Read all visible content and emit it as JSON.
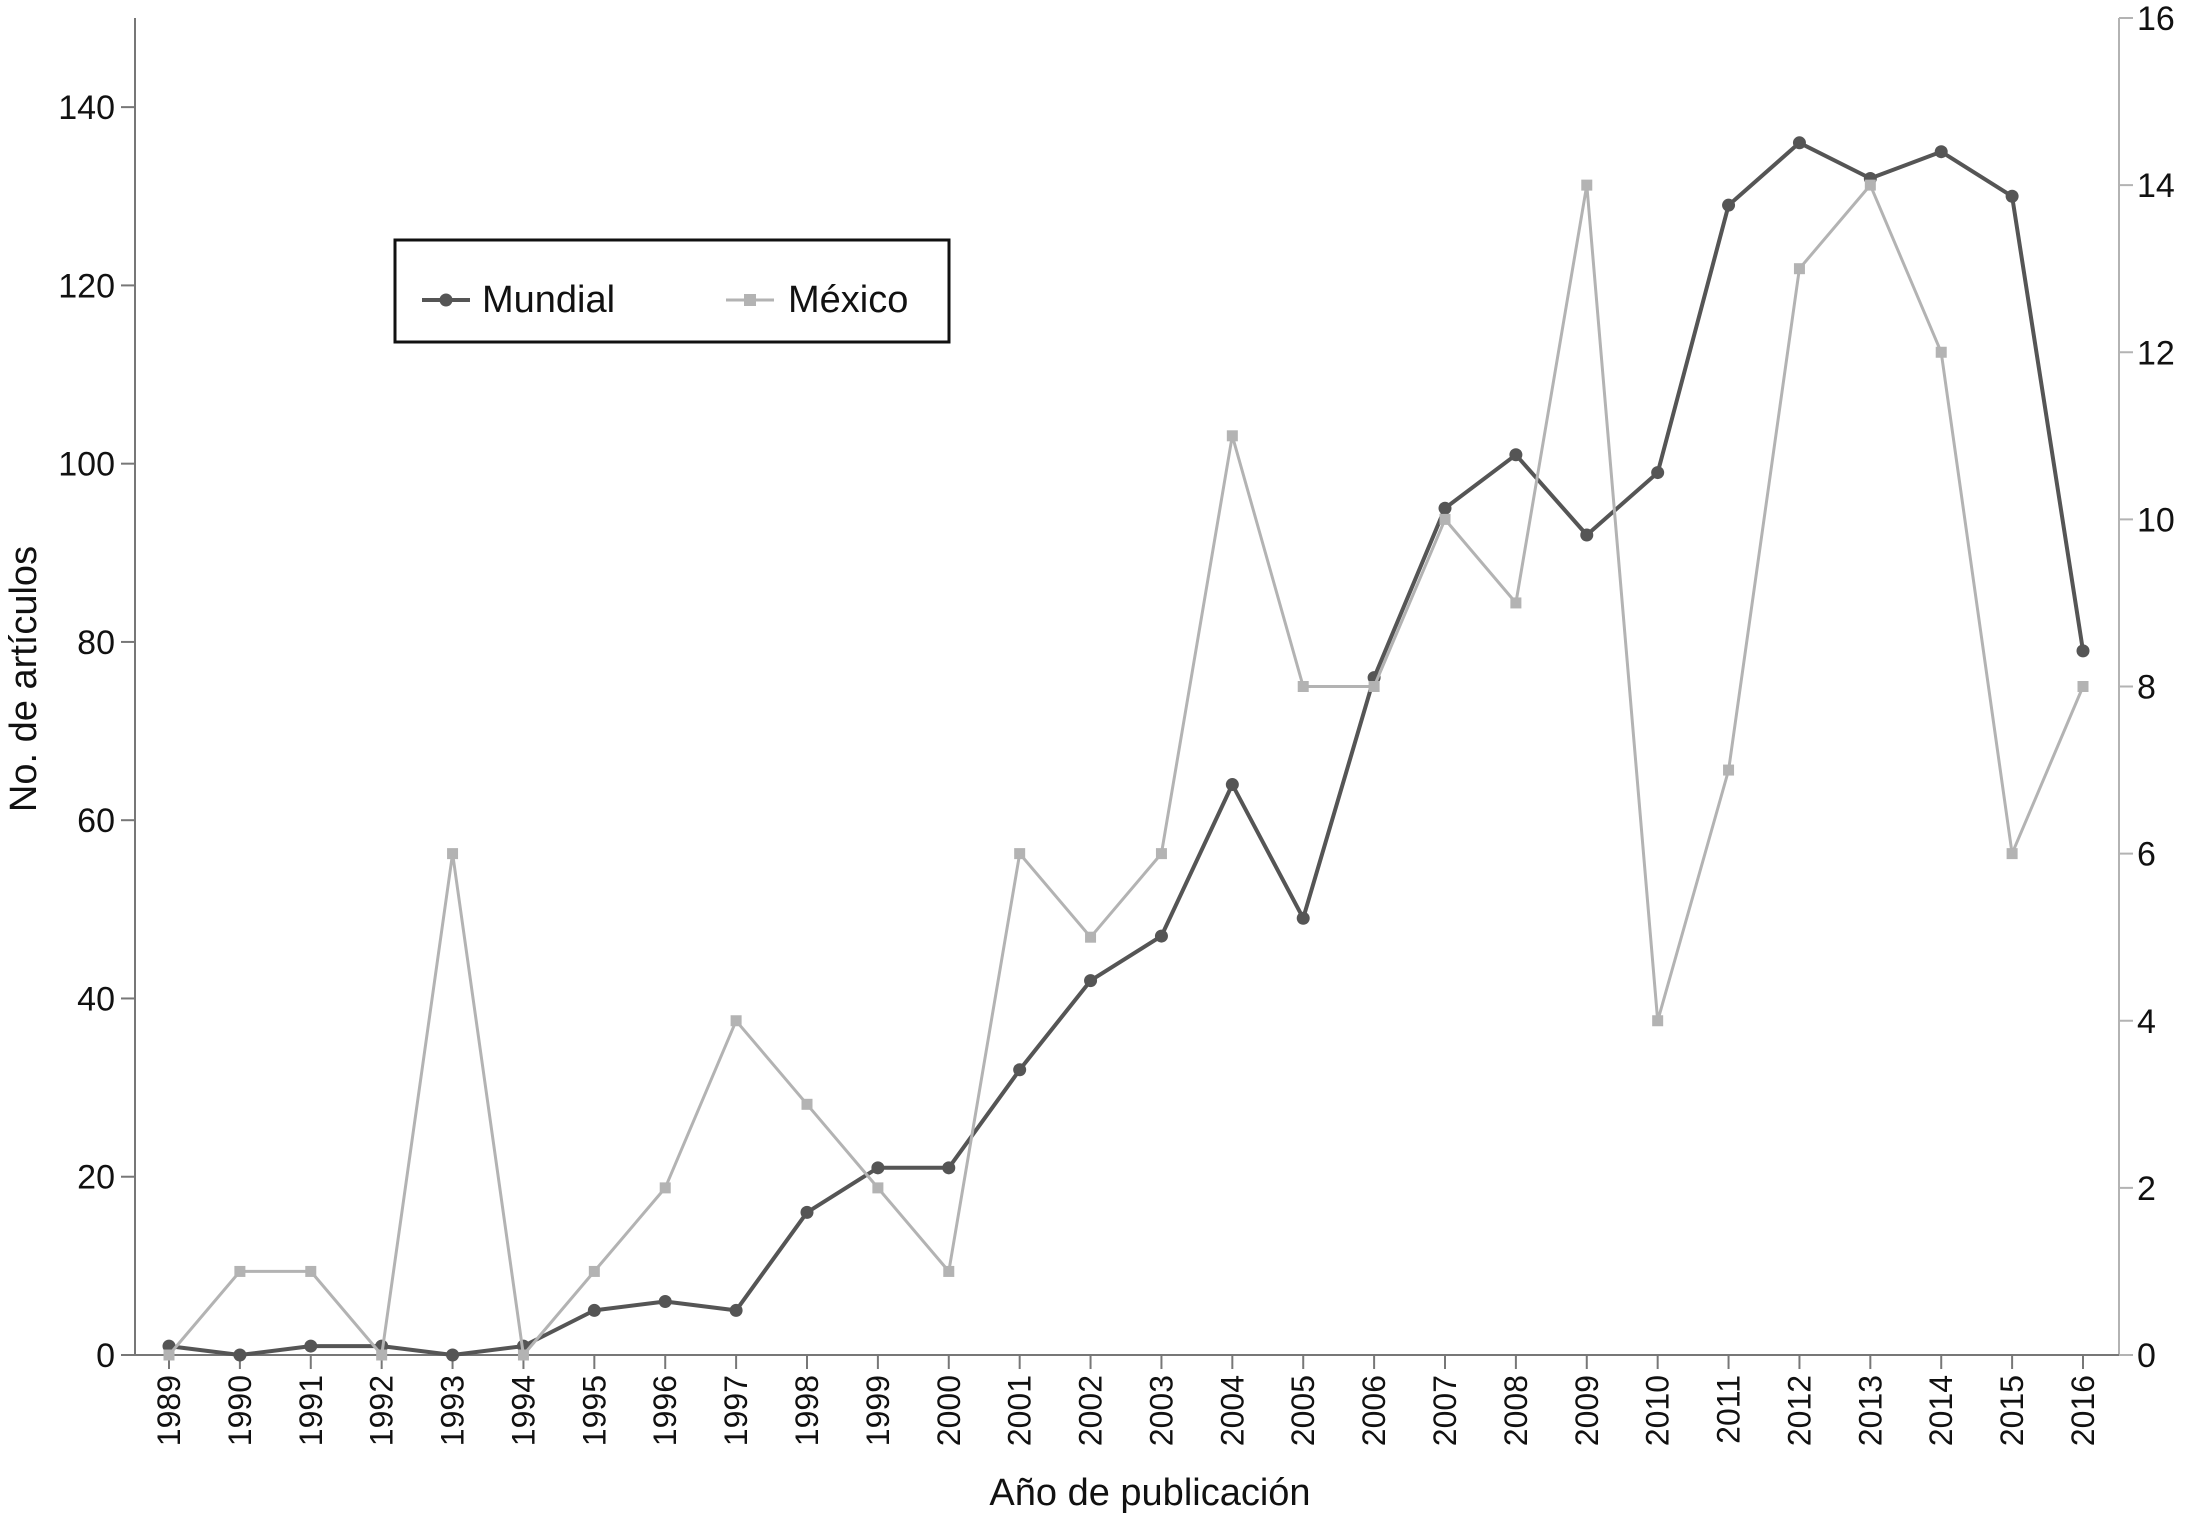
{
  "chart_data": {
    "type": "line",
    "title": "",
    "xlabel": "Año de publicación",
    "ylabel": "No. de artículos",
    "y2label": "",
    "categories": [
      "1989",
      "1990",
      "1991",
      "1992",
      "1993",
      "1994",
      "1995",
      "1996",
      "1997",
      "1998",
      "1999",
      "2000",
      "2001",
      "2002",
      "2003",
      "2004",
      "2005",
      "2006",
      "2007",
      "2008",
      "2009",
      "2010",
      "2011",
      "2012",
      "2013",
      "2014",
      "2015",
      "2016"
    ],
    "ylim": [
      0,
      150
    ],
    "y_ticks": [
      0,
      20,
      40,
      60,
      80,
      100,
      120,
      140
    ],
    "y2lim": [
      0,
      16
    ],
    "y2_ticks": [
      0,
      2,
      4,
      6,
      8,
      10,
      12,
      14,
      16
    ],
    "grid": false,
    "legend_position": "top-left",
    "series": [
      {
        "name": "Mundial",
        "axis": "left",
        "color": "#555555",
        "marker": "circle",
        "values": [
          1,
          0,
          1,
          1,
          0,
          1,
          5,
          6,
          5,
          16,
          21,
          21,
          32,
          42,
          47,
          64,
          49,
          76,
          95,
          101,
          92,
          99,
          129,
          136,
          132,
          135,
          130,
          79
        ]
      },
      {
        "name": "México",
        "axis": "right",
        "color": "#b3b3b3",
        "marker": "square",
        "values": [
          0,
          1,
          1,
          0,
          6,
          0,
          1,
          2,
          4,
          3,
          2,
          1,
          6,
          5,
          6,
          11,
          8,
          8,
          10,
          9,
          14,
          4,
          7,
          13,
          14,
          12,
          6,
          8
        ]
      }
    ]
  }
}
